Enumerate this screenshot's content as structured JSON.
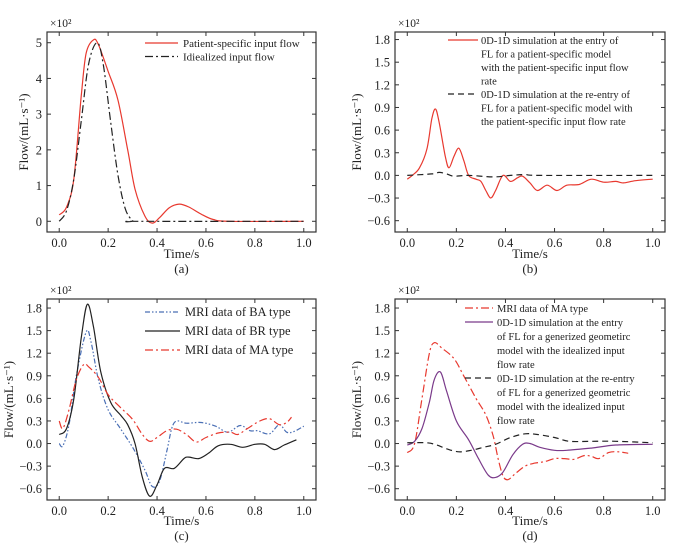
{
  "chart_data": [
    {
      "type": "line",
      "panel_label": "(a)",
      "multiplier": "×10²",
      "xlabel": "Time/s",
      "ylabel": "Flow/(mL·s⁻¹)",
      "xlim": [
        -0.05,
        1.05
      ],
      "ylim": [
        -0.3,
        5.3
      ],
      "xticks": [
        0,
        0.2,
        0.4,
        0.6,
        0.8,
        1.0
      ],
      "xtick_labels": [
        "0.0",
        "0.2",
        "0.4",
        "0.6",
        "0.8",
        "1.0"
      ],
      "yticks": [
        0,
        1,
        2,
        3,
        4,
        5
      ],
      "ytick_labels": [
        "0",
        "1",
        "2",
        "3",
        "4",
        "5"
      ],
      "legend": "top-right",
      "series": [
        {
          "name": "Patient-specific input flow",
          "color": "#e8392f",
          "style": "solid",
          "x": [
            0,
            0.03,
            0.06,
            0.09,
            0.11,
            0.14,
            0.16,
            0.2,
            0.24,
            0.28,
            0.31,
            0.35,
            0.38,
            0.41,
            0.45,
            0.49,
            0.53,
            0.58,
            0.63,
            0.7,
            1.0
          ],
          "y": [
            0.18,
            0.4,
            1.2,
            3.5,
            4.7,
            5.08,
            4.95,
            4.2,
            3.4,
            2.0,
            0.9,
            0.15,
            -0.05,
            0.1,
            0.38,
            0.48,
            0.4,
            0.2,
            0.05,
            0,
            0
          ]
        },
        {
          "name": "Idiealized input flow",
          "color": "#222222",
          "style": "dashdot",
          "x": [
            0,
            0.03,
            0.06,
            0.09,
            0.12,
            0.155,
            0.18,
            0.21,
            0.24,
            0.27,
            0.3,
            0.32,
            1.0
          ],
          "y": [
            0,
            0.3,
            1.2,
            2.8,
            4.4,
            5.0,
            4.4,
            2.8,
            1.3,
            0.35,
            0.02,
            0,
            0
          ]
        }
      ]
    },
    {
      "type": "line",
      "panel_label": "(b)",
      "multiplier": "×10²",
      "xlabel": "Time/s",
      "ylabel": "Flow/(mL·s⁻¹)",
      "xlim": [
        -0.05,
        1.05
      ],
      "ylim": [
        -0.75,
        1.9
      ],
      "xticks": [
        0,
        0.2,
        0.4,
        0.6,
        0.8,
        1.0
      ],
      "xtick_labels": [
        "0.0",
        "0.2",
        "0.4",
        "0.6",
        "0.8",
        "1.0"
      ],
      "yticks": [
        -0.6,
        -0.3,
        0,
        0.3,
        0.6,
        0.9,
        1.2,
        1.5,
        1.8
      ],
      "ytick_labels": [
        "−0.6",
        "−0.3",
        "0.0",
        "0.3",
        "0.6",
        "0.9",
        "1.2",
        "1.5",
        "1.8"
      ],
      "legend": "top-right",
      "series": [
        {
          "name": "0D-1D simulation at the entry of\nFL for a patient-specific model\nwith the patient-specific input flow\nrate",
          "color": "#e8392f",
          "style": "solid",
          "x": [
            0,
            0.02,
            0.05,
            0.08,
            0.1,
            0.115,
            0.13,
            0.155,
            0.17,
            0.19,
            0.21,
            0.23,
            0.25,
            0.28,
            0.3,
            0.32,
            0.34,
            0.36,
            0.39,
            0.42,
            0.45,
            0.47,
            0.5,
            0.53,
            0.57,
            0.61,
            0.65,
            0.7,
            0.75,
            0.8,
            0.85,
            0.88,
            0.93,
            1.0
          ],
          "y": [
            -0.05,
            0,
            0.1,
            0.35,
            0.75,
            0.88,
            0.7,
            0.25,
            0.1,
            0.25,
            0.36,
            0.2,
            0,
            -0.05,
            -0.08,
            -0.2,
            -0.3,
            -0.2,
            0,
            -0.08,
            -0.03,
            -0.01,
            -0.1,
            -0.2,
            -0.13,
            -0.2,
            -0.13,
            -0.12,
            -0.05,
            -0.09,
            -0.08,
            -0.1,
            -0.07,
            -0.05
          ]
        },
        {
          "name": "0D-1D simulation at the re-entry of\nFL for a patient-specific model with\nthe patient-specific input flow rate",
          "color": "#222222",
          "style": "dashed",
          "x": [
            0,
            0.1,
            0.13,
            0.16,
            0.19,
            0.25,
            0.35,
            0.42,
            0.48,
            0.55,
            1.0
          ],
          "y": [
            0,
            0.02,
            0.04,
            0.02,
            -0.01,
            0,
            -0.02,
            0,
            0.01,
            0,
            0
          ]
        }
      ]
    },
    {
      "type": "line",
      "panel_label": "(c)",
      "multiplier": "×10²",
      "xlabel": "Time/s",
      "ylabel": "Flow/(mL·s⁻¹)",
      "xlim": [
        -0.05,
        1.05
      ],
      "ylim": [
        -0.75,
        1.92
      ],
      "xticks": [
        0,
        0.2,
        0.4,
        0.6,
        0.8,
        1.0
      ],
      "xtick_labels": [
        "0.0",
        "0.2",
        "0.4",
        "0.6",
        "0.8",
        "1.0"
      ],
      "yticks": [
        -0.6,
        -0.3,
        0,
        0.3,
        0.6,
        0.9,
        1.2,
        1.5,
        1.8
      ],
      "ytick_labels": [
        "−0.6",
        "−0.3",
        "0.0",
        "0.3",
        "0.6",
        "0.9",
        "1.2",
        "1.5",
        "1.8"
      ],
      "legend": "top-right",
      "series": [
        {
          "name": "MRI data of BA type",
          "color": "#4a6fb5",
          "style": "dashdotdot",
          "x": [
            0,
            0.015,
            0.04,
            0.07,
            0.11,
            0.13,
            0.16,
            0.2,
            0.25,
            0.3,
            0.35,
            0.38,
            0.41,
            0.44,
            0.46,
            0.48,
            0.52,
            0.58,
            0.64,
            0.69,
            0.74,
            0.78,
            0.81,
            0.86,
            0.9,
            0.93,
            0.96,
            1.0
          ],
          "y": [
            0,
            -0.03,
            0.25,
            0.9,
            1.48,
            1.35,
            0.85,
            0.45,
            0.2,
            -0.05,
            -0.35,
            -0.57,
            -0.5,
            -0.1,
            0.2,
            0.3,
            0.27,
            0.28,
            0.23,
            0.15,
            0.24,
            0.17,
            0.17,
            0.13,
            0.25,
            0.15,
            0.16,
            0.23
          ]
        },
        {
          "name": "MRI data of BR type",
          "color": "#222222",
          "style": "solid",
          "x": [
            0,
            0.03,
            0.06,
            0.09,
            0.115,
            0.14,
            0.17,
            0.21,
            0.25,
            0.28,
            0.31,
            0.34,
            0.37,
            0.4,
            0.43,
            0.47,
            0.51,
            0.53,
            0.57,
            0.61,
            0.65,
            0.7,
            0.75,
            0.8,
            0.84,
            0.88,
            0.92,
            0.97
          ],
          "y": [
            0.12,
            0.2,
            0.6,
            1.4,
            1.85,
            1.55,
            0.95,
            0.55,
            0.38,
            0.25,
            0,
            -0.45,
            -0.7,
            -0.55,
            -0.33,
            -0.33,
            -0.2,
            -0.18,
            -0.2,
            -0.13,
            -0.03,
            -0.01,
            -0.05,
            -0.01,
            -0.01,
            -0.08,
            -0.02,
            0.05
          ]
        },
        {
          "name": "MRI data of MA type",
          "color": "#e8392f",
          "style": "dashdot",
          "x": [
            0,
            0.015,
            0.04,
            0.07,
            0.1,
            0.12,
            0.16,
            0.2,
            0.25,
            0.3,
            0.34,
            0.37,
            0.4,
            0.44,
            0.48,
            0.52,
            0.56,
            0.6,
            0.65,
            0.7,
            0.73,
            0.77,
            0.82,
            0.86,
            0.9,
            0.93,
            0.95
          ],
          "y": [
            0.3,
            0.2,
            0.45,
            0.85,
            1.05,
            1.02,
            0.88,
            0.65,
            0.48,
            0.32,
            0.12,
            0.03,
            0.08,
            0.17,
            0.19,
            0.12,
            0.02,
            0.08,
            0.14,
            0.15,
            0.12,
            0.2,
            0.3,
            0.33,
            0.25,
            0.28,
            0.35
          ]
        }
      ]
    },
    {
      "type": "line",
      "panel_label": "(d)",
      "multiplier": "×10²",
      "xlabel": "Time/s",
      "ylabel": "Flow/(mL·s⁻¹)",
      "xlim": [
        -0.05,
        1.05
      ],
      "ylim": [
        -0.75,
        1.92
      ],
      "xticks": [
        0,
        0.2,
        0.4,
        0.6,
        0.8,
        1.0
      ],
      "xtick_labels": [
        "0.0",
        "0.2",
        "0.4",
        "0.6",
        "0.8",
        "1.0"
      ],
      "yticks": [
        -0.6,
        -0.3,
        0,
        0.3,
        0.6,
        0.9,
        1.2,
        1.5,
        1.8
      ],
      "ytick_labels": [
        "−0.6",
        "−0.3",
        "0.0",
        "0.3",
        "0.6",
        "0.9",
        "1.2",
        "1.5",
        "1.8"
      ],
      "legend": "top-right",
      "series": [
        {
          "name": "MRI data of MA type",
          "color": "#e8392f",
          "style": "dashdot",
          "x": [
            0,
            0.03,
            0.06,
            0.09,
            0.11,
            0.14,
            0.19,
            0.23,
            0.28,
            0.32,
            0.35,
            0.37,
            0.39,
            0.41,
            0.44,
            0.48,
            0.52,
            0.56,
            0.6,
            0.64,
            0.68,
            0.72,
            0.75,
            0.78,
            0.82,
            0.86,
            0.9
          ],
          "y": [
            -0.12,
            0,
            0.6,
            1.2,
            1.34,
            1.27,
            1.13,
            0.9,
            0.6,
            0.38,
            0.1,
            -0.2,
            -0.43,
            -0.48,
            -0.4,
            -0.3,
            -0.26,
            -0.24,
            -0.2,
            -0.2,
            -0.21,
            -0.16,
            -0.17,
            -0.2,
            -0.12,
            -0.11,
            -0.13
          ]
        },
        {
          "name": "0D-1D simulation at the entry\nof FL for a generized geometirc\nmodel with the idealized input\nflow rate",
          "color": "#7a3a8a",
          "style": "solid",
          "x": [
            0,
            0.03,
            0.06,
            0.09,
            0.11,
            0.135,
            0.16,
            0.2,
            0.25,
            0.29,
            0.33,
            0.36,
            0.39,
            0.43,
            0.47,
            0.5,
            0.54,
            0.6,
            0.65,
            0.75,
            0.85,
            1.0
          ],
          "y": [
            -0.02,
            0.03,
            0.2,
            0.55,
            0.85,
            0.95,
            0.7,
            0.3,
            0.05,
            -0.2,
            -0.42,
            -0.45,
            -0.38,
            -0.15,
            -0.01,
            0,
            -0.05,
            -0.09,
            -0.09,
            -0.06,
            -0.02,
            -0.01
          ]
        },
        {
          "name": "0D-1D simulation at the re-entry\nof FL for a generized geometric\nmodel with the idealized input\nflow rate",
          "color": "#222222",
          "style": "dashed",
          "x": [
            0,
            0.08,
            0.12,
            0.16,
            0.21,
            0.26,
            0.31,
            0.36,
            0.42,
            0.48,
            0.53,
            0.6,
            0.66,
            0.75,
            0.85,
            1.0
          ],
          "y": [
            0.01,
            0.01,
            -0.02,
            -0.07,
            -0.11,
            -0.09,
            -0.05,
            -0.01,
            0.08,
            0.13,
            0.12,
            0.08,
            0.03,
            0.03,
            0.03,
            0.01
          ]
        }
      ]
    }
  ]
}
